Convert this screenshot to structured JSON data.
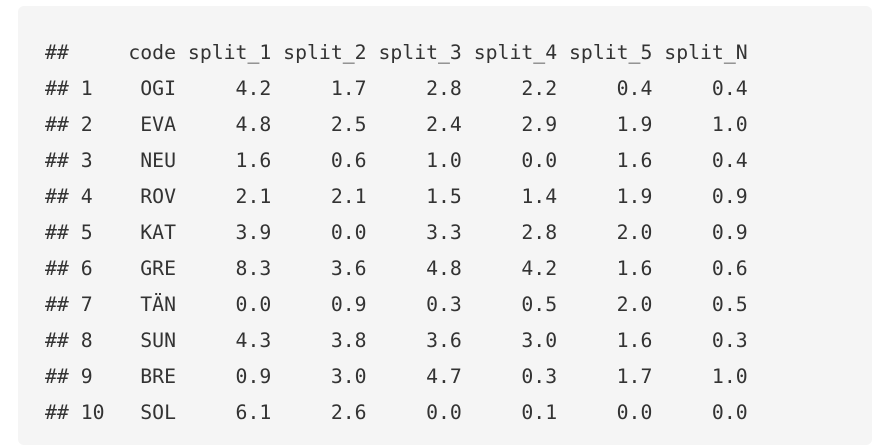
{
  "output": {
    "header": "##     code split_1 split_2 split_3 split_4 split_5 split_N",
    "rows": [
      "## 1    OGI     4.2     1.7     2.8     2.2     0.4     0.4",
      "## 2    EVA     4.8     2.5     2.4     2.9     1.9     1.0",
      "## 3    NEU     1.6     0.6     1.0     0.0     1.6     0.4",
      "## 4    ROV     2.1     2.1     1.5     1.4     1.9     0.9",
      "## 5    KAT     3.9     0.0     3.3     2.8     2.0     0.9",
      "## 6    GRE     8.3     3.6     4.8     4.2     1.6     0.6",
      "## 7    TÄN     0.0     0.9     0.3     0.5     2.0     0.5",
      "## 8    SUN     4.3     3.8     3.6     3.0     1.6     0.3",
      "## 9    BRE     0.9     3.0     4.7     0.3     1.7     1.0",
      "## 10   SOL     6.1     2.6     0.0     0.1     0.0     0.0"
    ]
  }
}
